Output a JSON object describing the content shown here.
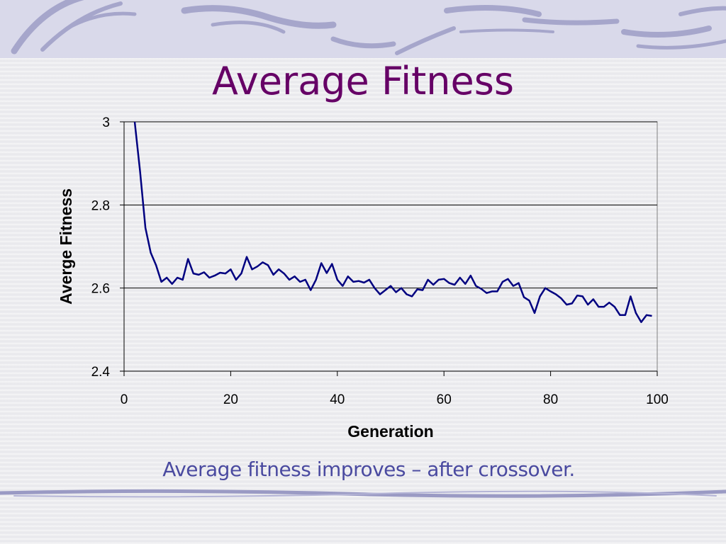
{
  "slide": {
    "title": "Average Fitness",
    "caption": "Average fitness improves – after crossover.",
    "colors": {
      "title": "#660066",
      "caption": "#4a4aa0",
      "line": "#000080",
      "band": "#d9d9ea",
      "decor": "#9a9ac4"
    }
  },
  "chart_data": {
    "type": "line",
    "title": "",
    "xlabel": "Generation",
    "ylabel": "Averge Fitness",
    "xlim": [
      0,
      100
    ],
    "ylim": [
      2.4,
      3.0
    ],
    "xticks": [
      "0",
      "20",
      "40",
      "60",
      "80",
      "100"
    ],
    "yticks": [
      "2.4",
      "2.6",
      "2.8",
      "3"
    ],
    "grid": "horizontal",
    "legend": "none",
    "series": [
      {
        "x": [
          2,
          3,
          4,
          5,
          6,
          7,
          8,
          9,
          10,
          11,
          12,
          13,
          14,
          15,
          16,
          17,
          18,
          19,
          20,
          21,
          22,
          23,
          24,
          25,
          26,
          27,
          28,
          29,
          30,
          31,
          32,
          33,
          34,
          35,
          36,
          37,
          38,
          39,
          40,
          41,
          42,
          43,
          44,
          45,
          46,
          47,
          48,
          49,
          50,
          51,
          52,
          53,
          54,
          55,
          56,
          57,
          58,
          59,
          60,
          61,
          62,
          63,
          64,
          65,
          66,
          67,
          68,
          69,
          70,
          71,
          72,
          73,
          74,
          75,
          76,
          77,
          78,
          79,
          80,
          81,
          82,
          83,
          84,
          85,
          86,
          87,
          88,
          89,
          90,
          91,
          92,
          93,
          94,
          95,
          96,
          97,
          98,
          99
        ],
        "values": [
          3.0,
          2.88,
          2.745,
          2.685,
          2.655,
          2.615,
          2.625,
          2.61,
          2.625,
          2.62,
          2.67,
          2.635,
          2.632,
          2.638,
          2.625,
          2.63,
          2.637,
          2.635,
          2.645,
          2.62,
          2.635,
          2.675,
          2.645,
          2.652,
          2.662,
          2.655,
          2.632,
          2.645,
          2.635,
          2.62,
          2.628,
          2.615,
          2.62,
          2.595,
          2.62,
          2.66,
          2.636,
          2.658,
          2.62,
          2.605,
          2.628,
          2.615,
          2.617,
          2.613,
          2.62,
          2.6,
          2.585,
          2.595,
          2.605,
          2.59,
          2.6,
          2.585,
          2.58,
          2.597,
          2.595,
          2.62,
          2.608,
          2.62,
          2.622,
          2.612,
          2.608,
          2.625,
          2.61,
          2.63,
          2.605,
          2.598,
          2.588,
          2.592,
          2.592,
          2.615,
          2.622,
          2.605,
          2.612,
          2.578,
          2.57,
          2.54,
          2.58,
          2.6,
          2.592,
          2.585,
          2.575,
          2.56,
          2.563,
          2.582,
          2.58,
          2.56,
          2.573,
          2.555,
          2.555,
          2.565,
          2.555,
          2.535,
          2.535,
          2.58,
          2.54,
          2.518,
          2.535,
          2.533
        ]
      }
    ]
  }
}
